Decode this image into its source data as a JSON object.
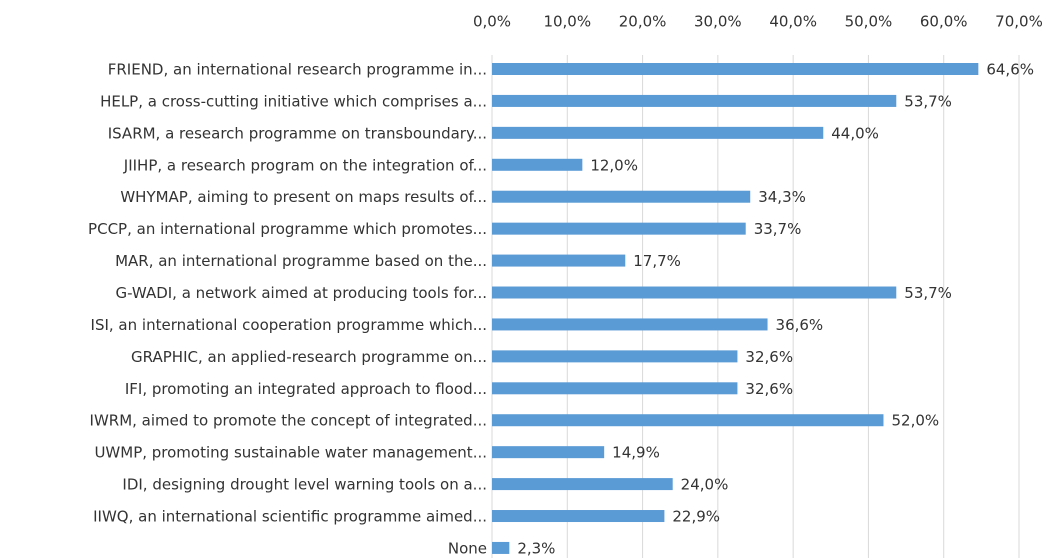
{
  "chart_data": {
    "type": "bar",
    "orientation": "horizontal",
    "categories": [
      "FRIEND, an international research programme in...",
      "HELP, a cross-cutting initiative which comprises a...",
      "ISARM, a research programme on transboundary...",
      "JIIHP, a research program on the integration of...",
      "WHYMAP, aiming to present on maps results of...",
      "PCCP, an international programme which promotes...",
      "MAR, an international programme based on the...",
      "G-WADI, a network aimed at producing tools for...",
      "ISI, an international cooperation programme which...",
      "GRAPHIC, an applied-research programme on...",
      "IFI, promoting an integrated approach to flood...",
      "IWRM, aimed to promote the concept of integrated...",
      "UWMP, promoting sustainable water management...",
      "IDI, designing drought level warning tools on a...",
      "IIWQ, an international scientific programme aimed...",
      "None"
    ],
    "values": [
      64.6,
      53.7,
      44.0,
      12.0,
      34.3,
      33.7,
      17.7,
      53.7,
      36.6,
      32.6,
      32.6,
      52.0,
      14.9,
      24.0,
      22.9,
      2.3
    ],
    "value_labels": [
      "64,6%",
      "53,7%",
      "44,0%",
      "12,0%",
      "34,3%",
      "33,7%",
      "17,7%",
      "53,7%",
      "36,6%",
      "32,6%",
      "32,6%",
      "52,0%",
      "14,9%",
      "24,0%",
      "22,9%",
      "2,3%"
    ],
    "color": "#5b9bd5",
    "xlim": [
      0,
      70
    ],
    "xticks": [
      {
        "value": 0,
        "label": "0,0%"
      },
      {
        "value": 10,
        "label": "10,0%"
      },
      {
        "value": 20,
        "label": "20,0%"
      },
      {
        "value": 30,
        "label": "30,0%"
      },
      {
        "value": 40,
        "label": "40,0%"
      },
      {
        "value": 50,
        "label": "50,0%"
      },
      {
        "value": 60,
        "label": "60,0%"
      },
      {
        "value": 70,
        "label": "70,0%"
      }
    ],
    "grid": true
  }
}
